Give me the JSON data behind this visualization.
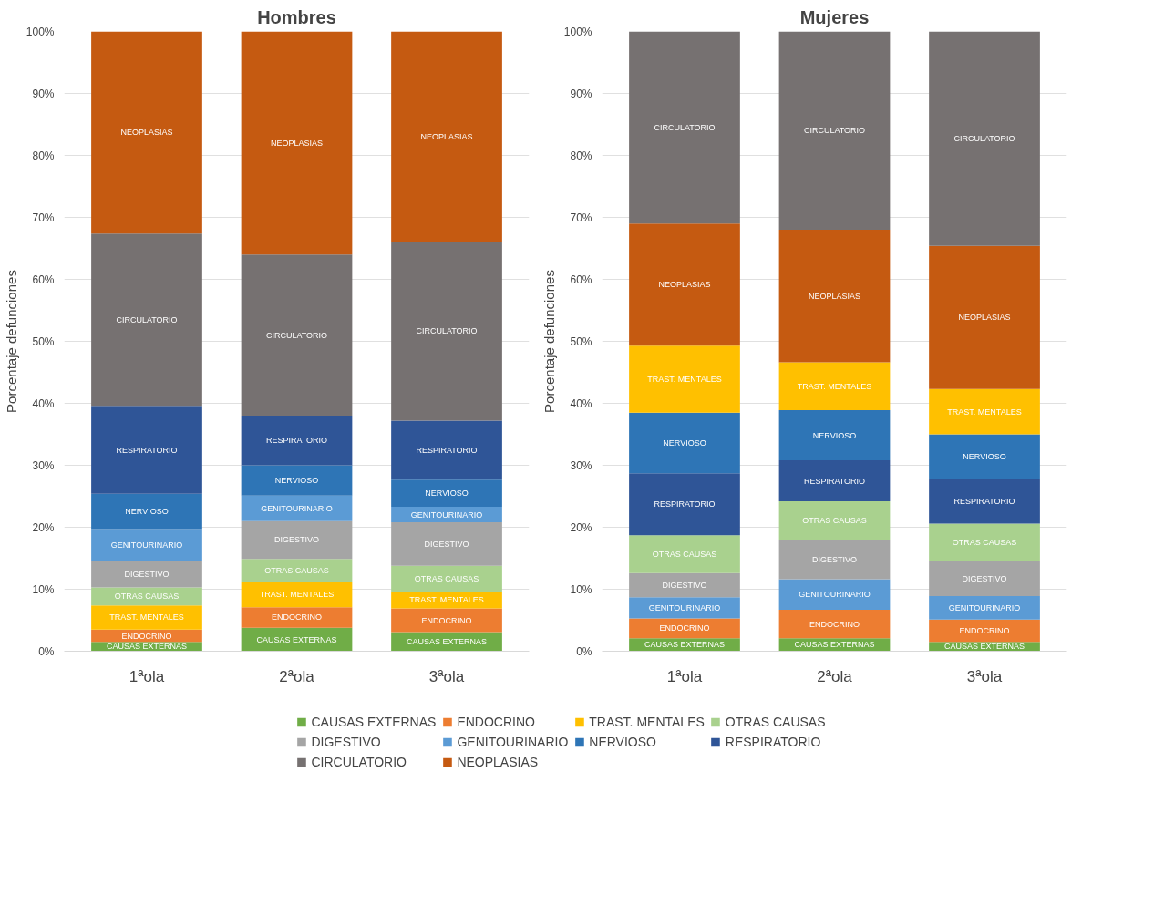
{
  "chart_data": [
    {
      "type": "bar",
      "stacked": true,
      "title": "Hombres",
      "ylabel": "Porcentaje defunciones",
      "categories": [
        "1ªola",
        "2ªola",
        "3ªola"
      ],
      "ylim": [
        0,
        100
      ],
      "yticks": [
        {
          "value": 0,
          "label": "0%"
        },
        {
          "value": 10,
          "label": "10%"
        },
        {
          "value": 20,
          "label": "20%"
        },
        {
          "value": 30,
          "label": "30%"
        },
        {
          "value": 40,
          "label": "40%"
        },
        {
          "value": 50,
          "label": "50%"
        },
        {
          "value": 60,
          "label": "60%"
        },
        {
          "value": 70,
          "label": "70%"
        },
        {
          "value": 80,
          "label": "80%"
        },
        {
          "value": 90,
          "label": "90%"
        },
        {
          "value": 100,
          "label": "100%"
        }
      ],
      "grid": "y",
      "legend": "bottom",
      "series": [
        {
          "name": "CAUSAS EXTERNAS",
          "color": "#70ad47",
          "values": [
            1.5,
            3.8,
            3.1
          ]
        },
        {
          "name": "ENDOCRINO",
          "color": "#ed7d31",
          "values": [
            2.0,
            3.3,
            3.8
          ]
        },
        {
          "name": "TRAST. MENTALES",
          "color": "#ffc000",
          "values": [
            3.9,
            4.1,
            2.7
          ]
        },
        {
          "name": "OTRAS CAUSAS",
          "color": "#a9d18e",
          "values": [
            2.9,
            3.7,
            4.2
          ]
        },
        {
          "name": "DIGESTIVO",
          "color": "#a5a5a5",
          "values": [
            4.3,
            6.1,
            7.0
          ]
        },
        {
          "name": "GENITOURINARIO",
          "color": "#5b9bd5",
          "values": [
            5.1,
            4.1,
            2.5
          ]
        },
        {
          "name": "NERVIOSO",
          "color": "#2e75b6",
          "values": [
            5.7,
            4.9,
            4.4
          ]
        },
        {
          "name": "RESPIRATORIO",
          "color": "#2f5597",
          "values": [
            14.2,
            8.0,
            9.5
          ]
        },
        {
          "name": "CIRCULATORIO",
          "color": "#767171",
          "values": [
            27.8,
            26.0,
            28.9
          ]
        },
        {
          "name": "NEOPLASIAS",
          "color": "#c55a11",
          "values": [
            32.6,
            36.0,
            33.9
          ]
        }
      ]
    },
    {
      "type": "bar",
      "stacked": true,
      "title": "Mujeres",
      "ylabel": "Porcentaje defunciones",
      "categories": [
        "1ªola",
        "2ªola",
        "3ªola"
      ],
      "ylim": [
        0,
        100
      ],
      "yticks": [
        {
          "value": 0,
          "label": "0%"
        },
        {
          "value": 10,
          "label": "10%"
        },
        {
          "value": 20,
          "label": "20%"
        },
        {
          "value": 30,
          "label": "30%"
        },
        {
          "value": 40,
          "label": "40%"
        },
        {
          "value": 50,
          "label": "50%"
        },
        {
          "value": 60,
          "label": "60%"
        },
        {
          "value": 70,
          "label": "70%"
        },
        {
          "value": 80,
          "label": "80%"
        },
        {
          "value": 90,
          "label": "90%"
        },
        {
          "value": 100,
          "label": "100%"
        }
      ],
      "grid": "y",
      "series": [
        {
          "name": "CAUSAS EXTERNAS",
          "color": "#70ad47",
          "values": [
            2.1,
            2.1,
            1.5
          ]
        },
        {
          "name": "ENDOCRINO",
          "color": "#ed7d31",
          "values": [
            3.2,
            4.6,
            3.6
          ]
        },
        {
          "name": "GENITOURINARIO",
          "color": "#5b9bd5",
          "values": [
            3.4,
            4.9,
            3.8
          ]
        },
        {
          "name": "DIGESTIVO",
          "color": "#a5a5a5",
          "values": [
            3.9,
            6.4,
            5.6
          ]
        },
        {
          "name": "OTRAS CAUSAS",
          "color": "#a9d18e",
          "values": [
            6.1,
            6.2,
            6.1
          ]
        },
        {
          "name": "RESPIRATORIO",
          "color": "#2f5597",
          "values": [
            10.0,
            6.6,
            7.2
          ]
        },
        {
          "name": "NERVIOSO",
          "color": "#2e75b6",
          "values": [
            9.8,
            8.1,
            7.2
          ]
        },
        {
          "name": "TRAST. MENTALES",
          "color": "#ffc000",
          "values": [
            10.8,
            7.7,
            7.3
          ]
        },
        {
          "name": "NEOPLASIAS",
          "color": "#c55a11",
          "values": [
            19.7,
            21.4,
            23.1
          ]
        },
        {
          "name": "CIRCULATORIO",
          "color": "#767171",
          "values": [
            31.0,
            32.0,
            34.6
          ]
        }
      ]
    }
  ]
}
